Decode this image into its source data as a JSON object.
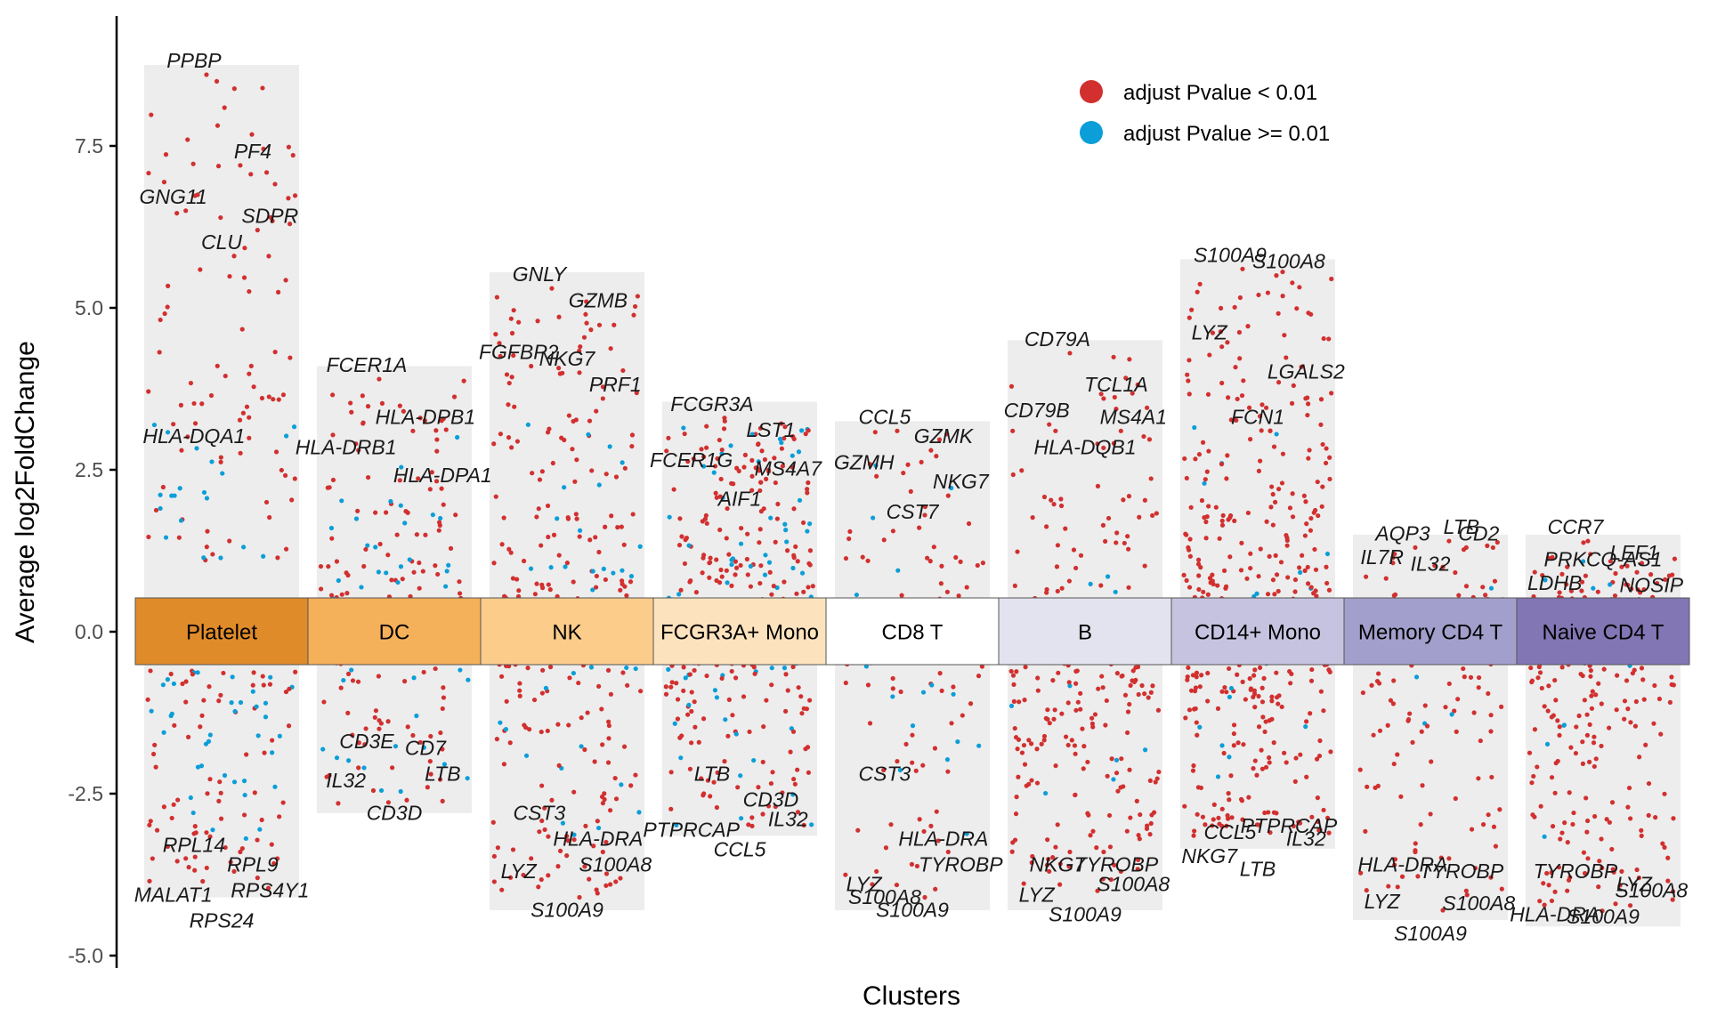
{
  "chart_data": {
    "type": "scatter",
    "xlabel": "Clusters",
    "ylabel": "Average log2FoldChange",
    "ylim": [
      -5.1,
      9.2
    ],
    "yticks": [
      {
        "value": -5.0,
        "label": "-5.0"
      },
      {
        "value": -2.5,
        "label": "-2.5"
      },
      {
        "value": 0.0,
        "label": "0.0"
      },
      {
        "value": 2.5,
        "label": "2.5"
      },
      {
        "value": 5.0,
        "label": "5.0"
      },
      {
        "value": 7.5,
        "label": "7.5"
      }
    ],
    "legend": {
      "placement": "top-right",
      "entries": [
        {
          "label": "adjust Pvalue < 0.01",
          "color": "#d1302f"
        },
        {
          "label": "adjust Pvalue >= 0.01",
          "color": "#0b9ed8"
        }
      ]
    },
    "clusters": [
      {
        "name": "Platelet",
        "color": "#e08b2a",
        "range": [
          -4.1,
          8.75
        ],
        "n_up": 110,
        "n_down": 110,
        "up_max": 8.6,
        "down_min": -4.0,
        "genes": [
          {
            "gene": "PPBP",
            "lfc": 8.6
          },
          {
            "gene": "PF4",
            "lfc": 7.2
          },
          {
            "gene": "GNG11",
            "lfc": 6.5
          },
          {
            "gene": "SDPR",
            "lfc": 6.2
          },
          {
            "gene": "CLU",
            "lfc": 5.8
          },
          {
            "gene": "HLA-DQA1",
            "lfc": 2.8
          },
          {
            "gene": "RPL14",
            "lfc": -3.1
          },
          {
            "gene": "RPL9",
            "lfc": -3.4
          },
          {
            "gene": "MALAT1",
            "lfc": -3.5
          },
          {
            "gene": "RPS4Y1",
            "lfc": -3.8
          },
          {
            "gene": "RPS24",
            "lfc": -3.7
          }
        ]
      },
      {
        "name": "DC",
        "color": "#f5b05a",
        "range": [
          -2.8,
          4.1
        ],
        "n_up": 120,
        "n_down": 70,
        "up_max": 3.9,
        "down_min": -2.7,
        "genes": [
          {
            "gene": "FCER1A",
            "lfc": 3.9
          },
          {
            "gene": "HLA-DPB1",
            "lfc": 3.1
          },
          {
            "gene": "HLA-DRB1",
            "lfc": 2.8
          },
          {
            "gene": "HLA-DPA1",
            "lfc": 2.2
          },
          {
            "gene": "CD3E",
            "lfc": -1.5
          },
          {
            "gene": "CD7",
            "lfc": -1.6
          },
          {
            "gene": "IL32",
            "lfc": -2.1
          },
          {
            "gene": "LTB",
            "lfc": -2.0
          },
          {
            "gene": "CD3D",
            "lfc": -2.6
          }
        ]
      },
      {
        "name": "NK",
        "color": "#fbcc8a",
        "range": [
          -4.3,
          5.55
        ],
        "n_up": 170,
        "n_down": 140,
        "up_max": 5.3,
        "down_min": -4.1,
        "genes": [
          {
            "gene": "GNLY",
            "lfc": 5.3
          },
          {
            "gene": "GZMB",
            "lfc": 4.9
          },
          {
            "gene": "FGFBP2",
            "lfc": 4.1
          },
          {
            "gene": "PRF1",
            "lfc": 3.6
          },
          {
            "gene": "NKG7",
            "lfc": 4.0
          },
          {
            "gene": "CST3",
            "lfc": -2.6
          },
          {
            "gene": "HLA-DRA",
            "lfc": -3.0
          },
          {
            "gene": "LYZ",
            "lfc": -3.5
          },
          {
            "gene": "S100A8",
            "lfc": -3.4
          },
          {
            "gene": "S100A9",
            "lfc": -4.1
          }
        ]
      },
      {
        "name": "FCGR3A+ Mono",
        "color": "#fde3bd",
        "range": [
          -3.15,
          3.55
        ],
        "n_up": 220,
        "n_down": 150,
        "up_max": 3.3,
        "down_min": -3.0,
        "genes": [
          {
            "gene": "FCGR3A",
            "lfc": 3.3
          },
          {
            "gene": "LST1",
            "lfc": 2.9
          },
          {
            "gene": "FCER1G",
            "lfc": 2.7
          },
          {
            "gene": "MS4A7",
            "lfc": 2.3
          },
          {
            "gene": "AIF1",
            "lfc": 2.4
          },
          {
            "gene": "LTB",
            "lfc": -2.0
          },
          {
            "gene": "CD3D",
            "lfc": -2.4
          },
          {
            "gene": "PTPRCAP",
            "lfc": -2.5
          },
          {
            "gene": "IL32",
            "lfc": -2.7
          },
          {
            "gene": "CCL5",
            "lfc": -3.0
          }
        ]
      },
      {
        "name": "CD8 T",
        "color": "#ffffff",
        "range": [
          -4.3,
          3.25
        ],
        "n_up": 50,
        "n_down": 70,
        "up_max": 3.1,
        "down_min": -4.1,
        "genes": [
          {
            "gene": "CCL5",
            "lfc": 3.1
          },
          {
            "gene": "GZMK",
            "lfc": 2.8
          },
          {
            "gene": "GZMH",
            "lfc": 2.4
          },
          {
            "gene": "NKG7",
            "lfc": 2.1
          },
          {
            "gene": "CST7",
            "lfc": 1.8
          },
          {
            "gene": "CST3",
            "lfc": -2.0
          },
          {
            "gene": "HLA-DRA",
            "lfc": -3.0
          },
          {
            "gene": "LYZ",
            "lfc": -3.7
          },
          {
            "gene": "TYROBP",
            "lfc": -3.4
          },
          {
            "gene": "S100A9",
            "lfc": -4.1
          },
          {
            "gene": "S100A8",
            "lfc": -3.9
          }
        ]
      },
      {
        "name": "B",
        "color": "#e3e3f0",
        "range": [
          -4.3,
          4.5
        ],
        "n_up": 90,
        "n_down": 200,
        "up_max": 4.3,
        "down_min": -4.0,
        "genes": [
          {
            "gene": "CD79A",
            "lfc": 4.3
          },
          {
            "gene": "TCL1A",
            "lfc": 3.6
          },
          {
            "gene": "CD79B",
            "lfc": 3.2
          },
          {
            "gene": "MS4A1",
            "lfc": 3.1
          },
          {
            "gene": "HLA-DQB1",
            "lfc": 2.9
          },
          {
            "gene": "NKG7",
            "lfc": -3.4
          },
          {
            "gene": "TYROBP",
            "lfc": -3.4
          },
          {
            "gene": "LYZ",
            "lfc": -3.7
          },
          {
            "gene": "S100A8",
            "lfc": -3.7
          },
          {
            "gene": "S100A9",
            "lfc": -4.0
          }
        ]
      },
      {
        "name": "CD14+ Mono",
        "color": "#c6c3e0",
        "range": [
          -3.35,
          5.75
        ],
        "n_up": 230,
        "n_down": 190,
        "up_max": 5.6,
        "down_min": -3.2,
        "genes": [
          {
            "gene": "S100A9",
            "lfc": 5.6
          },
          {
            "gene": "S100A8",
            "lfc": 5.5
          },
          {
            "gene": "LYZ",
            "lfc": 4.4
          },
          {
            "gene": "LGALS2",
            "lfc": 3.8
          },
          {
            "gene": "FCN1",
            "lfc": 3.1
          },
          {
            "gene": "CCL5",
            "lfc": -2.9
          },
          {
            "gene": "PTPRCAP",
            "lfc": -2.8
          },
          {
            "gene": "NKG7",
            "lfc": -3.0
          },
          {
            "gene": "IL32",
            "lfc": -3.0
          },
          {
            "gene": "LTB",
            "lfc": -3.1
          }
        ]
      },
      {
        "name": "Memory CD4 T",
        "color": "#a39fcc",
        "range": [
          -4.45,
          1.5
        ],
        "n_up": 50,
        "n_down": 90,
        "up_max": 1.4,
        "down_min": -4.3,
        "genes": [
          {
            "gene": "AQP3",
            "lfc": 1.3
          },
          {
            "gene": "LTB",
            "lfc": 1.4
          },
          {
            "gene": "IL7R",
            "lfc": 1.2
          },
          {
            "gene": "CD2",
            "lfc": 1.3
          },
          {
            "gene": "IL32",
            "lfc": 1.0
          },
          {
            "gene": "HLA-DRA",
            "lfc": -3.4
          },
          {
            "gene": "TYROBP",
            "lfc": -3.5
          },
          {
            "gene": "LYZ",
            "lfc": -3.6
          },
          {
            "gene": "S100A8",
            "lfc": -4.0
          },
          {
            "gene": "S100A9",
            "lfc": -4.3
          }
        ]
      },
      {
        "name": "Naive CD4 T",
        "color": "#8276b4",
        "range": [
          -4.55,
          1.5
        ],
        "n_up": 80,
        "n_down": 190,
        "up_max": 1.4,
        "down_min": -4.4,
        "genes": [
          {
            "gene": "CCR7",
            "lfc": 1.4
          },
          {
            "gene": "LEF1",
            "lfc": 1.0
          },
          {
            "gene": "LDHB",
            "lfc": 1.0
          },
          {
            "gene": "NOSIP",
            "lfc": 0.5
          },
          {
            "gene": "PRKCQ-AS1",
            "lfc": 0.9
          },
          {
            "gene": "TYROBP",
            "lfc": -3.5
          },
          {
            "gene": "LYZ",
            "lfc": -3.7
          },
          {
            "gene": "HLA-DRA",
            "lfc": -4.0
          },
          {
            "gene": "S100A8",
            "lfc": -3.8
          },
          {
            "gene": "S100A9",
            "lfc": -4.2
          }
        ]
      }
    ]
  }
}
